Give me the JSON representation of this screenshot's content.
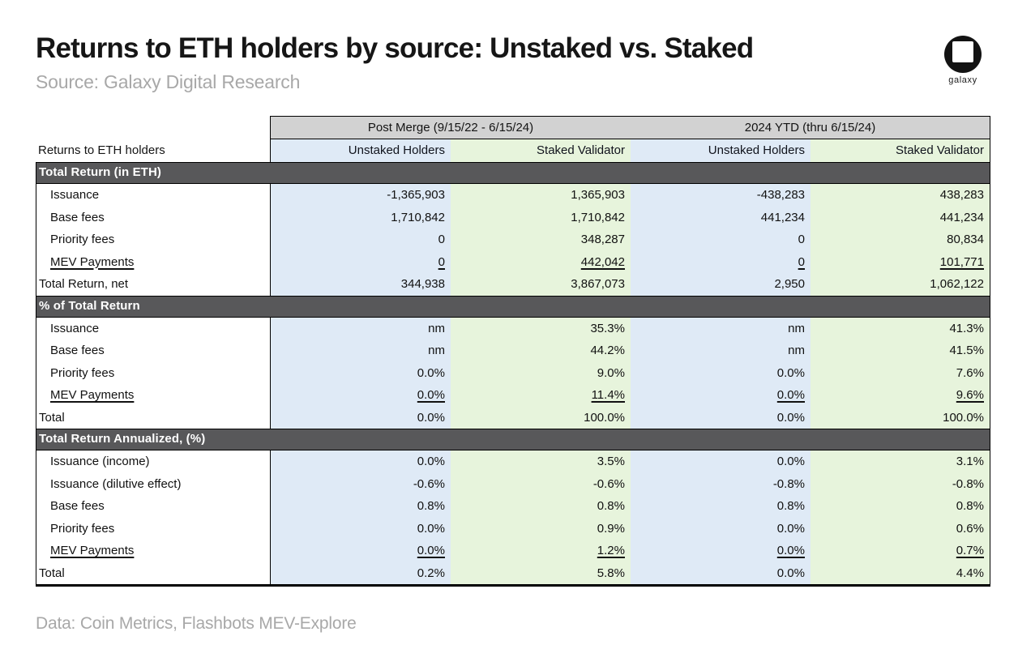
{
  "header": {
    "title": "Returns to ETH holders by source: Unstaked vs. Staked",
    "subtitle": "Source: Galaxy Digital Research",
    "logo_text": "galaxy"
  },
  "footer": {
    "text": "Data: Coin Metrics, Flashbots MEV-Explore"
  },
  "colors": {
    "column_blue": "#dfeaf6",
    "column_green": "#e7f4dc",
    "group_header_bg": "#d2d2d2",
    "section_bar_bg": "#58585a",
    "muted_text": "#a8a8a8"
  },
  "chart_data": {
    "type": "table",
    "title": "Returns to ETH holders by source: Unstaked vs. Staked",
    "source": "Source: Galaxy Digital Research",
    "data_note": "Data: Coin Metrics, Flashbots MEV-Explore",
    "row_header_label": "Returns to ETH holders",
    "group_headers": [
      "Post Merge (9/15/22 - 6/15/24)",
      "2024 YTD  (thru 6/15/24)"
    ],
    "column_headers": [
      "Unstaked Holders",
      "Staked Validator",
      "Unstaked Holders",
      "Staked Validator"
    ],
    "sections": [
      {
        "title": "Total Return (in ETH)",
        "rows": [
          {
            "label": "Issuance",
            "indent": true,
            "underline": false,
            "values": [
              "-1,365,903",
              "1,365,903",
              "-438,283",
              "438,283"
            ]
          },
          {
            "label": "Base fees",
            "indent": true,
            "underline": false,
            "values": [
              "1,710,842",
              "1,710,842",
              "441,234",
              "441,234"
            ]
          },
          {
            "label": "Priority fees",
            "indent": true,
            "underline": false,
            "values": [
              "0",
              "348,287",
              "0",
              "80,834"
            ]
          },
          {
            "label": "MEV Payments",
            "indent": true,
            "underline": true,
            "values": [
              "0",
              "442,042",
              "0",
              "101,771"
            ]
          },
          {
            "label": "Total Return, net",
            "indent": false,
            "underline": false,
            "values": [
              "344,938",
              "3,867,073",
              "2,950",
              "1,062,122"
            ]
          }
        ]
      },
      {
        "title": "% of Total Return",
        "rows": [
          {
            "label": "Issuance",
            "indent": true,
            "underline": false,
            "values": [
              "nm",
              "35.3%",
              "nm",
              "41.3%"
            ]
          },
          {
            "label": "Base fees",
            "indent": true,
            "underline": false,
            "values": [
              "nm",
              "44.2%",
              "nm",
              "41.5%"
            ]
          },
          {
            "label": "Priority fees",
            "indent": true,
            "underline": false,
            "values": [
              "0.0%",
              "9.0%",
              "0.0%",
              "7.6%"
            ]
          },
          {
            "label": "MEV Payments",
            "indent": true,
            "underline": true,
            "values": [
              "0.0%",
              "11.4%",
              "0.0%",
              "9.6%"
            ]
          },
          {
            "label": "Total",
            "indent": false,
            "underline": false,
            "values": [
              "0.0%",
              "100.0%",
              "0.0%",
              "100.0%"
            ]
          }
        ]
      },
      {
        "title": "Total Return Annualized, (%)",
        "rows": [
          {
            "label": "Issuance (income)",
            "indent": true,
            "underline": false,
            "values": [
              "0.0%",
              "3.5%",
              "0.0%",
              "3.1%"
            ]
          },
          {
            "label": "Issuance (dilutive effect)",
            "indent": true,
            "underline": false,
            "values": [
              "-0.6%",
              "-0.6%",
              "-0.8%",
              "-0.8%"
            ]
          },
          {
            "label": "Base fees",
            "indent": true,
            "underline": false,
            "values": [
              "0.8%",
              "0.8%",
              "0.8%",
              "0.8%"
            ]
          },
          {
            "label": "Priority fees",
            "indent": true,
            "underline": false,
            "values": [
              "0.0%",
              "0.9%",
              "0.0%",
              "0.6%"
            ]
          },
          {
            "label": "MEV Payments",
            "indent": true,
            "underline": true,
            "values": [
              "0.0%",
              "1.2%",
              "0.0%",
              "0.7%"
            ]
          },
          {
            "label": "Total",
            "indent": false,
            "underline": false,
            "values": [
              "0.2%",
              "5.8%",
              "0.0%",
              "4.4%"
            ]
          }
        ]
      }
    ]
  }
}
